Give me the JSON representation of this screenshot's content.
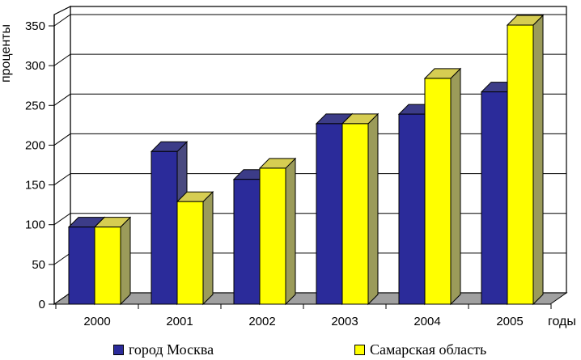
{
  "chart_data": {
    "type": "bar",
    "ylabel": "проценты",
    "xlabel": "годы",
    "categories": [
      "2000",
      "2001",
      "2002",
      "2003",
      "2004",
      "2005"
    ],
    "ylim": [
      0,
      350
    ],
    "yticks": [
      0,
      50,
      100,
      150,
      200,
      250,
      300,
      350
    ],
    "grid": true,
    "legend_position": "bottom",
    "series": [
      {
        "name": "город Москва",
        "values": [
          97,
          192,
          157,
          227,
          239,
          267
        ],
        "color": "#2b2b9a"
      },
      {
        "name": "Самарская область",
        "values": [
          97,
          129,
          171,
          227,
          284,
          351
        ],
        "color": "#ffff00"
      }
    ]
  }
}
